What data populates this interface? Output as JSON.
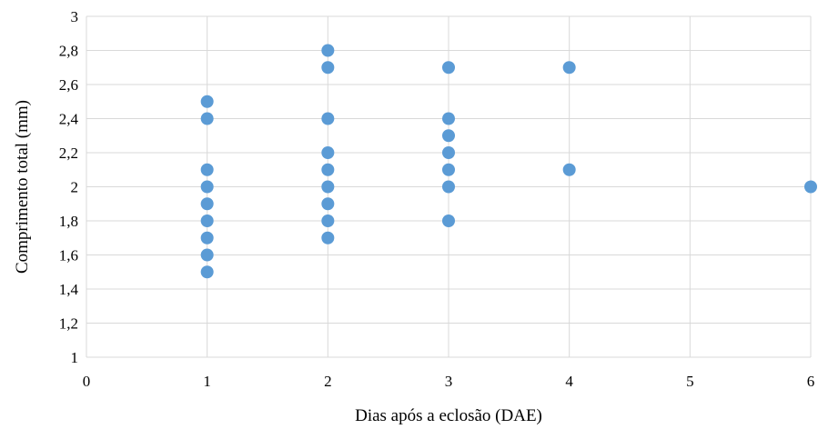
{
  "chart_data": {
    "type": "scatter",
    "title": "",
    "xlabel": "Dias após a eclosão (DAE)",
    "ylabel": "Comprimento total (mm)",
    "xlim": [
      0,
      6
    ],
    "ylim": [
      1,
      3
    ],
    "x_ticks": [
      {
        "value": 0,
        "label": "0"
      },
      {
        "value": 1,
        "label": "1"
      },
      {
        "value": 2,
        "label": "2"
      },
      {
        "value": 3,
        "label": "3"
      },
      {
        "value": 4,
        "label": "4"
      },
      {
        "value": 5,
        "label": "5"
      },
      {
        "value": 6,
        "label": "6"
      }
    ],
    "y_ticks": [
      {
        "value": 1,
        "label": "1"
      },
      {
        "value": 1.2,
        "label": "1,2"
      },
      {
        "value": 1.4,
        "label": "1,4"
      },
      {
        "value": 1.6,
        "label": "1,6"
      },
      {
        "value": 1.8,
        "label": "1,8"
      },
      {
        "value": 2,
        "label": "2"
      },
      {
        "value": 2.2,
        "label": "2,2"
      },
      {
        "value": 2.4,
        "label": "2,4"
      },
      {
        "value": 2.6,
        "label": "2,6"
      },
      {
        "value": 2.8,
        "label": "2,8"
      },
      {
        "value": 3,
        "label": "3"
      }
    ],
    "grid": true,
    "marker_color": "#5b9bd5",
    "series": [
      {
        "points": [
          [
            1,
            2.5
          ],
          [
            1,
            2.4
          ],
          [
            1,
            2.1
          ],
          [
            1,
            2.0
          ],
          [
            1,
            1.9
          ],
          [
            1,
            1.8
          ],
          [
            1,
            1.7
          ],
          [
            1,
            1.6
          ],
          [
            1,
            1.5
          ],
          [
            2,
            2.8
          ],
          [
            2,
            2.7
          ],
          [
            2,
            2.4
          ],
          [
            2,
            2.2
          ],
          [
            2,
            2.1
          ],
          [
            2,
            2.0
          ],
          [
            2,
            1.9
          ],
          [
            2,
            1.8
          ],
          [
            2,
            1.7
          ],
          [
            3,
            2.7
          ],
          [
            3,
            2.4
          ],
          [
            3,
            2.3
          ],
          [
            3,
            2.2
          ],
          [
            3,
            2.1
          ],
          [
            3,
            2.0
          ],
          [
            3,
            1.8
          ],
          [
            4,
            2.7
          ],
          [
            4,
            2.1
          ],
          [
            6,
            2.0
          ]
        ]
      }
    ]
  }
}
